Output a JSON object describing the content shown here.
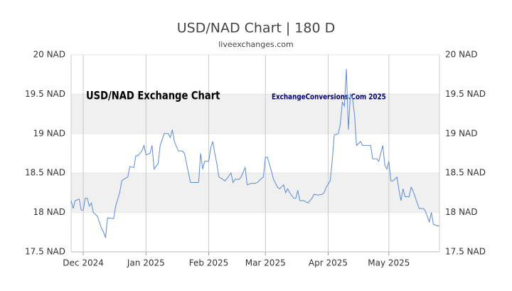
{
  "chart_data": {
    "type": "line",
    "title": "USD/NAD Chart | 180 D",
    "subtitle": "liveexchanges.com",
    "annotations": [
      "USD/NAD Exchange Chart",
      "ExchangeConversions.Com 2025"
    ],
    "x": [
      0,
      1,
      2,
      4,
      5,
      6,
      7,
      8,
      9,
      10,
      11,
      13,
      15,
      16,
      17,
      18,
      19,
      21,
      22,
      24,
      25,
      26,
      28,
      29,
      31,
      32,
      33,
      35,
      36,
      37,
      39,
      40,
      41,
      43,
      44,
      46,
      48,
      49,
      50,
      51,
      53,
      55,
      56,
      58,
      59,
      61,
      63,
      64,
      65,
      66,
      68,
      69,
      70,
      71,
      72,
      73,
      75,
      76,
      77,
      79,
      80,
      81,
      83,
      84,
      86,
      87,
      89,
      91,
      92,
      94,
      95,
      96,
      97,
      99,
      100,
      102,
      103,
      105,
      106,
      107,
      108,
      110,
      111,
      112,
      113,
      115,
      117,
      119,
      120,
      122,
      124,
      125,
      126,
      128,
      129,
      130,
      132,
      133,
      134,
      135,
      136,
      137,
      138,
      139,
      140,
      141,
      143,
      144,
      146,
      148,
      149,
      151,
      152,
      154,
      155,
      156,
      157,
      158,
      159,
      161,
      162,
      163,
      164,
      165,
      167,
      168,
      169,
      171,
      172,
      174,
      175,
      177,
      178,
      179,
      181,
      182
    ],
    "series": [
      {
        "name": "USD/NAD",
        "color": "#5a8ad8",
        "values": [
          18.15,
          18.05,
          18.15,
          18.17,
          18.03,
          18.03,
          18.18,
          18.18,
          18.08,
          18.12,
          18.0,
          17.95,
          17.8,
          17.75,
          17.68,
          17.93,
          17.93,
          17.92,
          18.08,
          18.25,
          18.4,
          18.42,
          18.45,
          18.58,
          18.57,
          18.72,
          18.72,
          18.78,
          18.85,
          18.73,
          18.75,
          18.85,
          18.55,
          18.62,
          18.85,
          19.0,
          19.0,
          18.95,
          19.05,
          18.9,
          18.78,
          18.78,
          18.75,
          18.5,
          18.38,
          18.38,
          18.38,
          18.75,
          18.55,
          18.65,
          18.65,
          18.82,
          18.9,
          18.75,
          18.62,
          18.45,
          18.42,
          18.4,
          18.43,
          18.5,
          18.38,
          18.42,
          18.42,
          18.45,
          18.57,
          18.35,
          18.37,
          18.37,
          18.38,
          18.43,
          18.45,
          18.7,
          18.7,
          18.52,
          18.42,
          18.32,
          18.3,
          18.35,
          18.25,
          18.3,
          18.25,
          18.18,
          18.18,
          18.28,
          18.15,
          18.15,
          18.12,
          18.18,
          18.23,
          18.22,
          18.23,
          18.25,
          18.32,
          18.4,
          18.65,
          18.98,
          19.0,
          19.12,
          19.4,
          19.35,
          19.82,
          19.05,
          19.5,
          19.45,
          19.25,
          18.85,
          18.9,
          18.85,
          18.85,
          18.85,
          18.68,
          18.68,
          18.65,
          18.85,
          18.6,
          18.55,
          18.65,
          18.4,
          18.4,
          18.45,
          18.28,
          18.15,
          18.3,
          18.2,
          18.2,
          18.32,
          18.27,
          18.12,
          18.05,
          18.05,
          18.02,
          17.88,
          18.0,
          17.85,
          17.83,
          17.83
        ]
      }
    ],
    "xlim": [
      0,
      182
    ],
    "xticks": [
      {
        "value": 6,
        "label": "Dec 2024"
      },
      {
        "value": 37,
        "label": "Jan 2025"
      },
      {
        "value": 68,
        "label": "Feb 2025"
      },
      {
        "value": 96,
        "label": "Mar 2025"
      },
      {
        "value": 127,
        "label": "Apr 2025"
      },
      {
        "value": 157,
        "label": "May 2025"
      }
    ],
    "ylim": [
      17.5,
      20
    ],
    "yticks": [
      {
        "value": 17.5,
        "label": "17.5 NAD"
      },
      {
        "value": 18,
        "label": "18 NAD"
      },
      {
        "value": 18.5,
        "label": "18.5 NAD"
      },
      {
        "value": 19,
        "label": "19 NAD"
      },
      {
        "value": 19.5,
        "label": "19.5 NAD"
      },
      {
        "value": 20,
        "label": "20 NAD"
      }
    ],
    "grid": true
  }
}
